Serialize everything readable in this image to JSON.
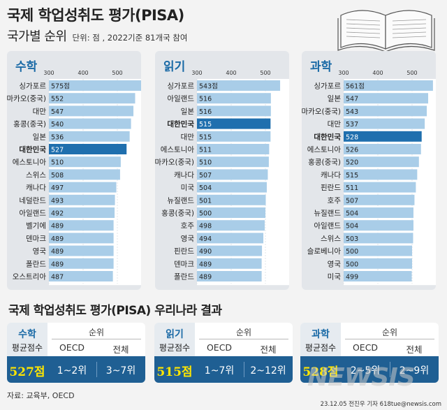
{
  "header": {
    "title": "국제 학업성취도 평가(PISA)",
    "subtitle": "국가별 순위",
    "unit_note": "단위: 점 , 2022기준 81개국 참여"
  },
  "colors": {
    "bar": "#a9cde8",
    "highlight_bar": "#1f6fae",
    "accent_text": "#1a6aa6",
    "score_yellow": "#ffe600",
    "summary_bg": "#1f5f93"
  },
  "chart_data": [
    {
      "type": "bar",
      "title": "수학",
      "orientation": "horizontal",
      "ticks": [
        300,
        400,
        500
      ],
      "xlim": [
        300,
        585
      ],
      "highlight": "대한민국",
      "first_value_suffix": "점",
      "categories": [
        "싱가포르",
        "마카오(중국)",
        "대만",
        "홍콩(중국)",
        "일본",
        "대한민국",
        "에스토니아",
        "스위스",
        "캐나다",
        "네덜란드",
        "아일랜드",
        "벨기에",
        "덴마크",
        "영국",
        "폴란드",
        "오스트리아"
      ],
      "values": [
        575,
        552,
        547,
        540,
        536,
        527,
        510,
        508,
        497,
        493,
        492,
        489,
        489,
        489,
        489,
        487
      ]
    },
    {
      "type": "bar",
      "title": "읽기",
      "orientation": "horizontal",
      "ticks": [
        300,
        400,
        500
      ],
      "xlim": [
        300,
        585
      ],
      "highlight": "대한민국",
      "first_value_suffix": "점",
      "categories": [
        "싱가포르",
        "아일랜드",
        "일본",
        "대한민국",
        "대만",
        "에스토니아",
        "마카오(중국)",
        "캐나다",
        "미국",
        "뉴질랜드",
        "홍콩(중국)",
        "호주",
        "영국",
        "핀란드",
        "덴마크",
        "폴란드"
      ],
      "values": [
        543,
        516,
        516,
        515,
        515,
        511,
        510,
        507,
        504,
        501,
        500,
        498,
        494,
        490,
        489,
        489
      ]
    },
    {
      "type": "bar",
      "title": "과학",
      "orientation": "horizontal",
      "ticks": [
        300,
        400,
        500
      ],
      "xlim": [
        300,
        585
      ],
      "highlight": "대한민국",
      "first_value_suffix": "점",
      "categories": [
        "싱가포르",
        "일본",
        "마카오(중국)",
        "대만",
        "대한민국",
        "에스토니아",
        "홍콩(중국)",
        "캐나다",
        "핀란드",
        "호주",
        "뉴질랜드",
        "아일랜드",
        "스위스",
        "슬로베니아",
        "영국",
        "미국"
      ],
      "values": [
        561,
        547,
        543,
        537,
        528,
        526,
        520,
        515,
        511,
        507,
        504,
        504,
        503,
        500,
        500,
        499
      ]
    }
  ],
  "summary": {
    "title": "국제 학업성취도 평가(PISA) 우리나라 결과",
    "boxes": [
      {
        "subject": "수학",
        "avg_label": "평균점수",
        "rank_label": "순위",
        "col1": "OECD",
        "col2": "전체",
        "score": "527점",
        "oecd_rank": "1~2위",
        "total_rank": "3~7위"
      },
      {
        "subject": "읽기",
        "avg_label": "평균점수",
        "rank_label": "순위",
        "col1": "OECD",
        "col2": "전체",
        "score": "515점",
        "oecd_rank": "1~7위",
        "total_rank": "2~12위"
      },
      {
        "subject": "과학",
        "avg_label": "평균점수",
        "rank_label": "순위",
        "col1": "OECD",
        "col2": "전체",
        "score": "528점",
        "oecd_rank": "2~5위",
        "total_rank": "2~9위"
      }
    ]
  },
  "footer": {
    "source": "자료: 교육부, OECD",
    "credit": "23.12.05 전진우 기자 618tue@newsis.com",
    "watermark": "NEWSIS"
  }
}
